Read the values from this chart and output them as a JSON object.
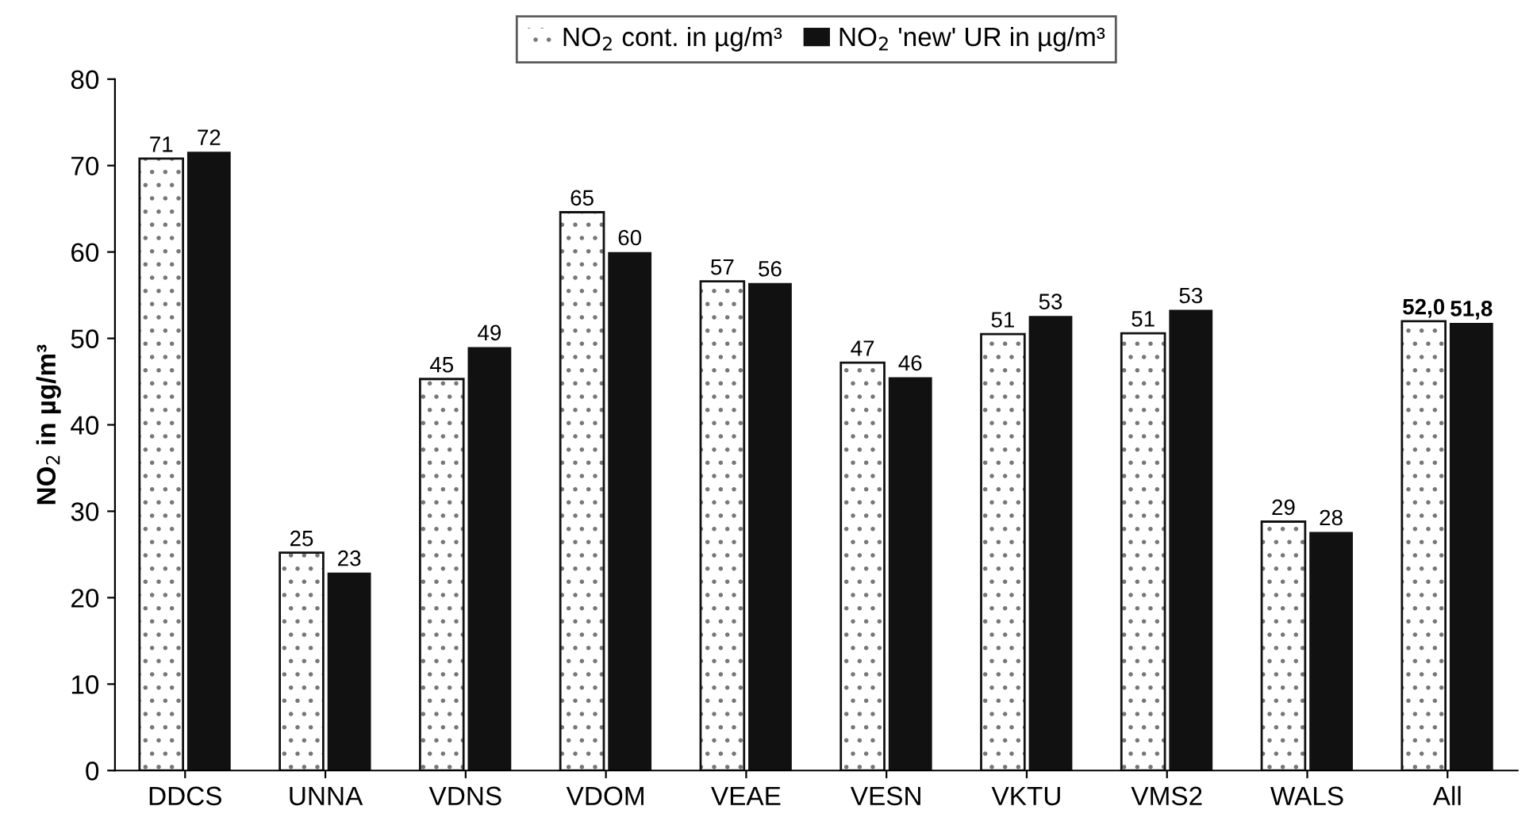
{
  "chart_data": {
    "type": "bar",
    "ylabel": "NO$_{2}$ in µg/m³",
    "categories": [
      "DDCS",
      "UNNA",
      "VDNS",
      "VDOM",
      "VEAE",
      "VESN",
      "VKTU",
      "VMS2",
      "WALS",
      "All"
    ],
    "series": [
      {
        "name": "NO$_{2}$ cont. in µg/m³",
        "color": "#ffffff",
        "values": [
          70.8,
          25.2,
          45.3,
          64.6,
          56.6,
          47.2,
          50.5,
          50.6,
          28.8,
          52.0
        ],
        "value_labels": [
          "71",
          "25",
          "45",
          "65",
          "57",
          "47",
          "51",
          "51",
          "29",
          "52,0"
        ]
      },
      {
        "name": "NO$_{2}$ 'new' UR in µg/m³",
        "color": "#111111",
        "values": [
          71.6,
          22.9,
          49.0,
          60.0,
          56.4,
          45.5,
          52.6,
          53.3,
          27.6,
          51.8
        ],
        "value_labels": [
          "72",
          "23",
          "49",
          "60",
          "56",
          "46",
          "53",
          "53",
          "28",
          "51,8"
        ]
      }
    ],
    "ylim": [
      0,
      80
    ],
    "yticks": [
      0,
      10,
      20,
      30,
      40,
      50,
      60,
      70,
      80
    ],
    "grid": false,
    "legend": "top"
  }
}
